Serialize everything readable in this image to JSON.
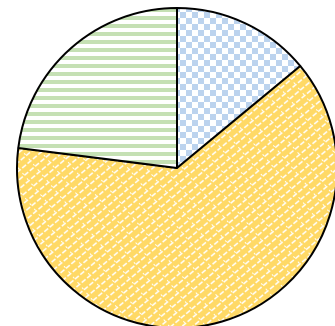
{
  "chart_data": {
    "type": "pie",
    "start_angle_deg": 90,
    "direction": "clockwise",
    "slices": [
      {
        "label": "",
        "value": 14,
        "fill": "#bcd3ee",
        "pattern": "checkerboard"
      },
      {
        "label": "",
        "value": 63,
        "fill": "#ffd966",
        "pattern": "diagonal-weave"
      },
      {
        "label": "",
        "value": 23,
        "fill": "#c5e0b4",
        "pattern": "horizontal-stripes"
      }
    ]
  }
}
